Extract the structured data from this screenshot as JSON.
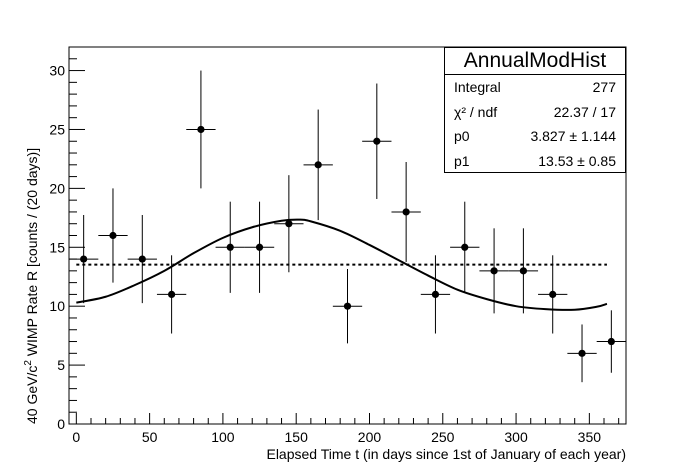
{
  "chart_data": {
    "type": "scatter",
    "title": "AnnualModHist",
    "xlabel": "Elapsed Time t  (in days since 1st of January of each year)",
    "ylabel_prefix": "40 GeV/c",
    "ylabel_sup": "2",
    "ylabel_suffix": " WIMP Rate R  [counts / (20 days)]",
    "xlim": [
      -5,
      375
    ],
    "ylim": [
      0,
      32
    ],
    "x_ticks": [
      0,
      50,
      100,
      150,
      200,
      250,
      300,
      350
    ],
    "y_ticks": [
      0,
      5,
      10,
      15,
      20,
      25,
      30
    ],
    "bin_half_width": 10,
    "points": [
      {
        "x": 5,
        "y": 14,
        "err": 3.74
      },
      {
        "x": 25,
        "y": 16,
        "err": 4.0
      },
      {
        "x": 45,
        "y": 14,
        "err": 3.74
      },
      {
        "x": 65,
        "y": 11,
        "err": 3.32
      },
      {
        "x": 85,
        "y": 25,
        "err": 5.0
      },
      {
        "x": 105,
        "y": 15,
        "err": 3.87
      },
      {
        "x": 125,
        "y": 15,
        "err": 3.87
      },
      {
        "x": 145,
        "y": 17,
        "err": 4.12
      },
      {
        "x": 165,
        "y": 22,
        "err": 4.69
      },
      {
        "x": 185,
        "y": 10,
        "err": 3.16
      },
      {
        "x": 205,
        "y": 24,
        "err": 4.9
      },
      {
        "x": 225,
        "y": 18,
        "err": 4.24
      },
      {
        "x": 245,
        "y": 11,
        "err": 3.32
      },
      {
        "x": 265,
        "y": 15,
        "err": 3.87
      },
      {
        "x": 285,
        "y": 13,
        "err": 3.61
      },
      {
        "x": 305,
        "y": 13,
        "err": 3.61
      },
      {
        "x": 325,
        "y": 11,
        "err": 3.32
      },
      {
        "x": 345,
        "y": 6,
        "err": 2.45
      },
      {
        "x": 365,
        "y": 7,
        "err": 2.65
      }
    ],
    "fit_curve": {
      "name": "fit",
      "x": [
        0,
        20,
        40,
        60,
        80,
        100,
        120,
        140,
        152,
        160,
        180,
        200,
        220,
        240,
        260,
        280,
        300,
        320,
        340,
        355,
        362
      ],
      "y": [
        10.3,
        10.8,
        11.8,
        13.0,
        14.5,
        15.8,
        16.7,
        17.25,
        17.35,
        17.2,
        16.4,
        15.2,
        13.9,
        12.6,
        11.4,
        10.6,
        10.0,
        9.75,
        9.7,
        9.95,
        10.2
      ]
    },
    "constant_line": {
      "name": "p1",
      "y": 13.53,
      "x_range": [
        0,
        362
      ]
    }
  },
  "stats_box": {
    "title": "AnnualModHist",
    "rows": [
      {
        "key": "Integral",
        "value": "277"
      },
      {
        "key": "χ² / ndf",
        "value": "22.37 / 17"
      },
      {
        "key": "p0",
        "value": "3.827 ± 1.144"
      },
      {
        "key": "p1",
        "value": "13.53 ± 0.85"
      }
    ]
  }
}
